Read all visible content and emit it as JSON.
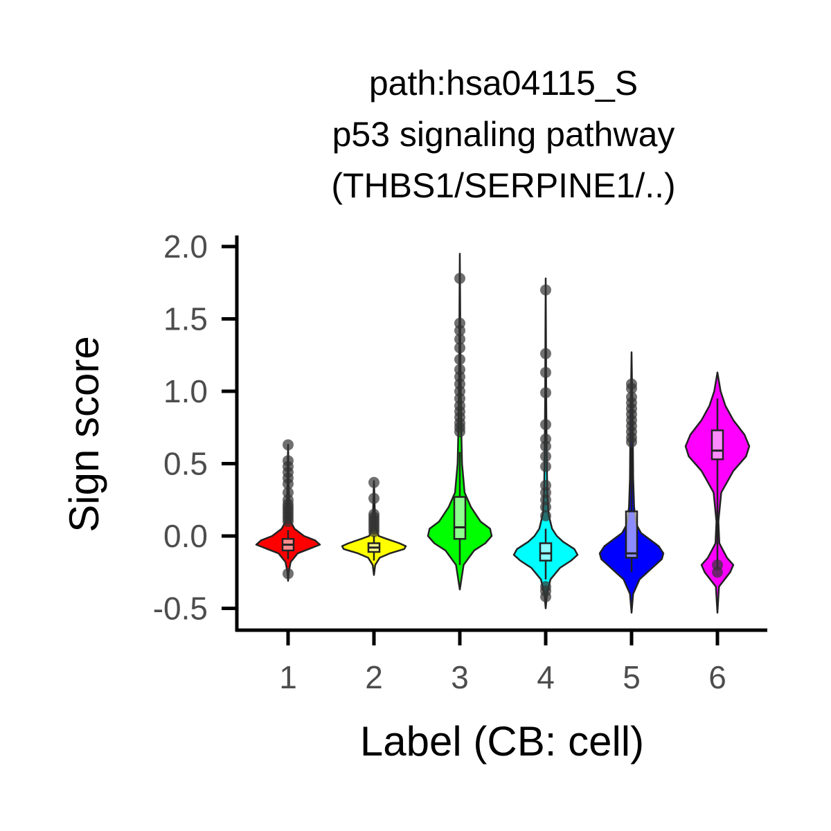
{
  "chart_data": {
    "type": "violin",
    "title": "path:hsa04115_S\np53 signaling pathway\n(THBS1/SERPINE1/..)",
    "title_lines": [
      "path:hsa04115_S",
      "p53 signaling pathway",
      "(THBS1/SERPINE1/..)"
    ],
    "xlabel": "Label (CB: cell)",
    "ylabel": "Sign score",
    "categories": [
      "1",
      "2",
      "3",
      "4",
      "5",
      "6"
    ],
    "ylim": [
      -0.65,
      2.08
    ],
    "yticks": [
      -0.5,
      0.0,
      0.5,
      1.0,
      1.5,
      2.0
    ],
    "ytick_labels": [
      "-0.5",
      "0.0",
      "0.5",
      "1.0",
      "1.5",
      "2.0"
    ],
    "grid": false,
    "legend": "none",
    "groups": [
      {
        "label": "1",
        "color": "#ff0000",
        "violin": {
          "min": -0.31,
          "max": 0.63,
          "profile": [
            [
              -0.31,
              0.0
            ],
            [
              -0.25,
              0.02
            ],
            [
              -0.18,
              0.08
            ],
            [
              -0.12,
              0.3
            ],
            [
              -0.09,
              0.65
            ],
            [
              -0.06,
              1.0
            ],
            [
              -0.03,
              0.85
            ],
            [
              0.0,
              0.5
            ],
            [
              0.05,
              0.2
            ],
            [
              0.1,
              0.08
            ],
            [
              0.2,
              0.04
            ],
            [
              0.35,
              0.02
            ],
            [
              0.5,
              0.01
            ],
            [
              0.63,
              0.0
            ]
          ]
        },
        "box": {
          "q1": -0.1,
          "median": -0.06,
          "q3": -0.02,
          "whisker_low": -0.16,
          "whisker_high": 0.04
        },
        "outliers": [
          -0.26,
          0.1,
          0.12,
          0.14,
          0.16,
          0.18,
          0.2,
          0.22,
          0.25,
          0.3,
          0.36,
          0.4,
          0.44,
          0.48,
          0.52,
          0.63
        ]
      },
      {
        "label": "2",
        "color": "#ffff00",
        "violin": {
          "min": -0.27,
          "max": 0.38,
          "profile": [
            [
              -0.27,
              0.0
            ],
            [
              -0.2,
              0.04
            ],
            [
              -0.15,
              0.18
            ],
            [
              -0.12,
              0.5
            ],
            [
              -0.09,
              0.95
            ],
            [
              -0.07,
              1.0
            ],
            [
              -0.05,
              0.8
            ],
            [
              -0.02,
              0.4
            ],
            [
              0.0,
              0.15
            ],
            [
              0.05,
              0.06
            ],
            [
              0.15,
              0.03
            ],
            [
              0.3,
              0.01
            ],
            [
              0.38,
              0.0
            ]
          ]
        },
        "box": {
          "q1": -0.11,
          "median": -0.08,
          "q3": -0.05,
          "whisker_low": -0.17,
          "whisker_high": 0.0
        },
        "outliers": [
          0.03,
          0.05,
          0.07,
          0.09,
          0.11,
          0.13,
          0.15,
          0.26,
          0.37
        ]
      },
      {
        "label": "3",
        "color": "#00ff00",
        "violin": {
          "min": -0.37,
          "max": 1.95,
          "profile": [
            [
              -0.37,
              0.0
            ],
            [
              -0.2,
              0.12
            ],
            [
              -0.1,
              0.45
            ],
            [
              -0.05,
              0.8
            ],
            [
              0.0,
              1.0
            ],
            [
              0.05,
              0.95
            ],
            [
              0.1,
              0.65
            ],
            [
              0.2,
              0.35
            ],
            [
              0.3,
              0.15
            ],
            [
              0.5,
              0.07
            ],
            [
              0.8,
              0.04
            ],
            [
              1.2,
              0.02
            ],
            [
              1.6,
              0.01
            ],
            [
              1.95,
              0.0
            ]
          ]
        },
        "box": {
          "q1": -0.02,
          "median": 0.06,
          "q3": 0.27,
          "whisker_low": -0.2,
          "whisker_high": 0.58
        },
        "outliers": [
          0.72,
          0.75,
          0.78,
          0.82,
          0.86,
          0.9,
          0.95,
          1.0,
          1.05,
          1.1,
          1.15,
          1.22,
          1.3,
          1.36,
          1.42,
          1.47,
          1.78
        ]
      },
      {
        "label": "4",
        "color": "#00ffff",
        "violin": {
          "min": -0.5,
          "max": 1.78,
          "profile": [
            [
              -0.5,
              0.0
            ],
            [
              -0.4,
              0.04
            ],
            [
              -0.3,
              0.15
            ],
            [
              -0.22,
              0.45
            ],
            [
              -0.17,
              0.8
            ],
            [
              -0.13,
              1.0
            ],
            [
              -0.09,
              0.9
            ],
            [
              -0.04,
              0.55
            ],
            [
              0.0,
              0.35
            ],
            [
              0.05,
              0.2
            ],
            [
              0.15,
              0.09
            ],
            [
              0.3,
              0.05
            ],
            [
              0.6,
              0.03
            ],
            [
              1.0,
              0.015
            ],
            [
              1.4,
              0.008
            ],
            [
              1.78,
              0.0
            ]
          ]
        },
        "box": {
          "q1": -0.17,
          "median": -0.12,
          "q3": -0.05,
          "whisker_low": -0.3,
          "whisker_high": 0.05
        },
        "outliers": [
          -0.42,
          -0.38,
          -0.35,
          0.14,
          0.2,
          0.25,
          0.3,
          0.35,
          0.48,
          0.55,
          0.62,
          0.67,
          0.77,
          0.99,
          1.13,
          1.26,
          1.7
        ]
      },
      {
        "label": "5",
        "color": "#0000ff",
        "violin": {
          "min": -0.53,
          "max": 1.27,
          "profile": [
            [
              -0.53,
              0.0
            ],
            [
              -0.4,
              0.05
            ],
            [
              -0.3,
              0.25
            ],
            [
              -0.22,
              0.65
            ],
            [
              -0.16,
              0.95
            ],
            [
              -0.12,
              1.0
            ],
            [
              -0.07,
              0.85
            ],
            [
              -0.02,
              0.55
            ],
            [
              0.02,
              0.3
            ],
            [
              0.08,
              0.15
            ],
            [
              0.2,
              0.08
            ],
            [
              0.4,
              0.05
            ],
            [
              0.7,
              0.04
            ],
            [
              0.9,
              0.03
            ],
            [
              1.1,
              0.01
            ],
            [
              1.27,
              0.0
            ]
          ]
        },
        "box": {
          "q1": -0.15,
          "median": -0.12,
          "q3": 0.17,
          "whisker_low": -0.25,
          "whisker_high": 0.62
        },
        "outliers": [
          0.65,
          0.68,
          0.72,
          0.76,
          0.8,
          0.84,
          0.88,
          0.92,
          0.96,
          1.02,
          1.05
        ]
      },
      {
        "label": "6",
        "color": "#ff00ff",
        "violin": {
          "min": -0.53,
          "max": 1.13,
          "profile": [
            [
              -0.53,
              0.0
            ],
            [
              -0.35,
              0.05
            ],
            [
              -0.25,
              0.4
            ],
            [
              -0.2,
              0.5
            ],
            [
              -0.15,
              0.3
            ],
            [
              -0.05,
              0.06
            ],
            [
              0.1,
              0.03
            ],
            [
              0.3,
              0.12
            ],
            [
              0.45,
              0.5
            ],
            [
              0.55,
              0.9
            ],
            [
              0.62,
              1.0
            ],
            [
              0.7,
              0.85
            ],
            [
              0.8,
              0.5
            ],
            [
              0.9,
              0.25
            ],
            [
              1.0,
              0.1
            ],
            [
              1.13,
              0.0
            ]
          ]
        },
        "box": {
          "q1": 0.53,
          "median": 0.59,
          "q3": 0.73,
          "whisker_low": -0.22,
          "whisker_high": 0.95
        },
        "outliers": [
          -0.25,
          -0.2
        ]
      }
    ]
  }
}
